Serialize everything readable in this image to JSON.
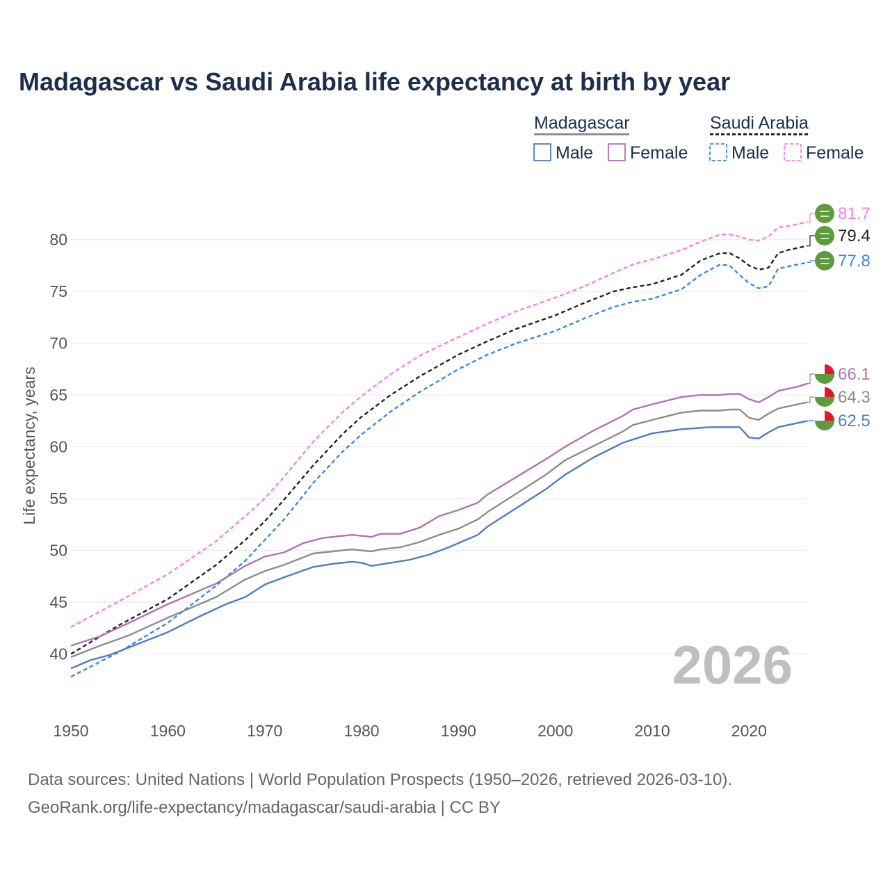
{
  "chart_data": {
    "type": "line",
    "title": "Madagascar vs Saudi Arabia life expectancy at birth by year",
    "ylabel": "Life expectancy, years",
    "xlabel": "",
    "xlim": [
      1950,
      2026
    ],
    "ylim": [
      35,
      83
    ],
    "y_ticks": [
      40,
      45,
      50,
      55,
      60,
      65,
      70,
      75,
      80
    ],
    "x_ticks": [
      1950,
      1960,
      1970,
      1980,
      1990,
      2000,
      2010,
      2020
    ],
    "year_watermark": "2026",
    "legend": {
      "groups": [
        {
          "name": "Madagascar",
          "style": "solid",
          "items": [
            "Male",
            "Female"
          ]
        },
        {
          "name": "Saudi Arabia",
          "style": "dashed",
          "items": [
            "Male",
            "Female"
          ]
        }
      ]
    },
    "series": [
      {
        "name": "Saudi Arabia Female",
        "country": "Saudi Arabia",
        "sex": "Female",
        "dashed": true,
        "color": "#f47ef0",
        "end_label": "81.7",
        "points": [
          [
            1950,
            42.6
          ],
          [
            1955,
            45.1
          ],
          [
            1960,
            47.7
          ],
          [
            1965,
            50.9
          ],
          [
            1968,
            53.3
          ],
          [
            1970,
            55.0
          ],
          [
            1972,
            57.1
          ],
          [
            1975,
            60.5
          ],
          [
            1978,
            63.3
          ],
          [
            1980,
            64.9
          ],
          [
            1983,
            67.0
          ],
          [
            1986,
            68.8
          ],
          [
            1990,
            70.6
          ],
          [
            1993,
            71.9
          ],
          [
            1996,
            73.1
          ],
          [
            2000,
            74.4
          ],
          [
            2003,
            75.5
          ],
          [
            2006,
            76.8
          ],
          [
            2008,
            77.6
          ],
          [
            2010,
            78.1
          ],
          [
            2013,
            79.0
          ],
          [
            2015,
            79.8
          ],
          [
            2017,
            80.5
          ],
          [
            2018,
            80.5
          ],
          [
            2019,
            80.3
          ],
          [
            2020,
            80.0
          ],
          [
            2021,
            79.9
          ],
          [
            2022,
            80.3
          ],
          [
            2023,
            81.2
          ],
          [
            2024,
            81.3
          ],
          [
            2025,
            81.5
          ],
          [
            2026,
            81.7
          ]
        ]
      },
      {
        "name": "Saudi Arabia Both",
        "country": "Saudi Arabia",
        "sex": "Both",
        "dashed": true,
        "color": "#222222",
        "end_label": "79.4",
        "points": [
          [
            1950,
            40.0
          ],
          [
            1955,
            42.8
          ],
          [
            1960,
            45.3
          ],
          [
            1965,
            48.6
          ],
          [
            1968,
            51.0
          ],
          [
            1970,
            52.8
          ],
          [
            1972,
            54.9
          ],
          [
            1975,
            58.2
          ],
          [
            1978,
            61.2
          ],
          [
            1980,
            62.9
          ],
          [
            1983,
            65.0
          ],
          [
            1986,
            66.8
          ],
          [
            1990,
            68.9
          ],
          [
            1993,
            70.2
          ],
          [
            1996,
            71.4
          ],
          [
            2000,
            72.7
          ],
          [
            2003,
            73.9
          ],
          [
            2006,
            75.0
          ],
          [
            2008,
            75.4
          ],
          [
            2010,
            75.7
          ],
          [
            2013,
            76.6
          ],
          [
            2015,
            78.0
          ],
          [
            2017,
            78.7
          ],
          [
            2018,
            78.7
          ],
          [
            2019,
            78.2
          ],
          [
            2020,
            77.5
          ],
          [
            2021,
            77.1
          ],
          [
            2022,
            77.3
          ],
          [
            2023,
            78.7
          ],
          [
            2024,
            79.0
          ],
          [
            2025,
            79.2
          ],
          [
            2026,
            79.4
          ]
        ]
      },
      {
        "name": "Saudi Arabia Male",
        "country": "Saudi Arabia",
        "sex": "Male",
        "dashed": true,
        "color": "#3b86e8",
        "end_label": "77.8",
        "points": [
          [
            1950,
            37.8
          ],
          [
            1955,
            40.2
          ],
          [
            1960,
            43.0
          ],
          [
            1965,
            46.6
          ],
          [
            1968,
            49.0
          ],
          [
            1970,
            51.0
          ],
          [
            1972,
            53.0
          ],
          [
            1975,
            56.5
          ],
          [
            1978,
            59.5
          ],
          [
            1980,
            61.2
          ],
          [
            1983,
            63.4
          ],
          [
            1986,
            65.3
          ],
          [
            1990,
            67.5
          ],
          [
            1993,
            68.9
          ],
          [
            1996,
            70.0
          ],
          [
            2000,
            71.2
          ],
          [
            2003,
            72.4
          ],
          [
            2006,
            73.5
          ],
          [
            2008,
            74.0
          ],
          [
            2010,
            74.3
          ],
          [
            2013,
            75.2
          ],
          [
            2015,
            76.6
          ],
          [
            2017,
            77.6
          ],
          [
            2018,
            77.5
          ],
          [
            2019,
            76.6
          ],
          [
            2020,
            75.8
          ],
          [
            2021,
            75.3
          ],
          [
            2022,
            75.5
          ],
          [
            2023,
            77.2
          ],
          [
            2024,
            77.4
          ],
          [
            2025,
            77.6
          ],
          [
            2026,
            77.8
          ]
        ]
      },
      {
        "name": "Madagascar Female",
        "country": "Madagascar",
        "sex": "Female",
        "dashed": false,
        "color": "#b072b3",
        "end_label": "66.1",
        "points": [
          [
            1950,
            40.8
          ],
          [
            1953,
            41.7
          ],
          [
            1956,
            43.0
          ],
          [
            1960,
            44.8
          ],
          [
            1965,
            46.8
          ],
          [
            1968,
            48.5
          ],
          [
            1970,
            49.4
          ],
          [
            1972,
            49.8
          ],
          [
            1974,
            50.7
          ],
          [
            1976,
            51.2
          ],
          [
            1979,
            51.5
          ],
          [
            1981,
            51.3
          ],
          [
            1982,
            51.6
          ],
          [
            1984,
            51.6
          ],
          [
            1986,
            52.2
          ],
          [
            1988,
            53.3
          ],
          [
            1990,
            53.9
          ],
          [
            1992,
            54.6
          ],
          [
            1993,
            55.4
          ],
          [
            1996,
            57.1
          ],
          [
            1999,
            58.8
          ],
          [
            2001,
            60.0
          ],
          [
            2004,
            61.6
          ],
          [
            2007,
            63.0
          ],
          [
            2008,
            63.6
          ],
          [
            2010,
            64.1
          ],
          [
            2013,
            64.8
          ],
          [
            2015,
            65.0
          ],
          [
            2017,
            65.0
          ],
          [
            2018,
            65.1
          ],
          [
            2019,
            65.1
          ],
          [
            2020,
            64.6
          ],
          [
            2021,
            64.3
          ],
          [
            2022,
            64.8
          ],
          [
            2023,
            65.4
          ],
          [
            2024,
            65.6
          ],
          [
            2025,
            65.8
          ],
          [
            2026,
            66.1
          ]
        ]
      },
      {
        "name": "Madagascar Both",
        "country": "Madagascar",
        "sex": "Both",
        "dashed": false,
        "color": "#8c8c8c",
        "end_label": "64.3",
        "points": [
          [
            1950,
            39.7
          ],
          [
            1953,
            40.8
          ],
          [
            1956,
            41.8
          ],
          [
            1960,
            43.5
          ],
          [
            1965,
            45.5
          ],
          [
            1968,
            47.2
          ],
          [
            1970,
            48.0
          ],
          [
            1972,
            48.6
          ],
          [
            1975,
            49.7
          ],
          [
            1979,
            50.1
          ],
          [
            1981,
            49.9
          ],
          [
            1982,
            50.1
          ],
          [
            1984,
            50.3
          ],
          [
            1986,
            50.8
          ],
          [
            1988,
            51.5
          ],
          [
            1990,
            52.1
          ],
          [
            1992,
            53.0
          ],
          [
            1993,
            53.7
          ],
          [
            1996,
            55.5
          ],
          [
            1999,
            57.3
          ],
          [
            2001,
            58.7
          ],
          [
            2004,
            60.1
          ],
          [
            2007,
            61.5
          ],
          [
            2008,
            62.1
          ],
          [
            2010,
            62.6
          ],
          [
            2013,
            63.3
          ],
          [
            2015,
            63.5
          ],
          [
            2017,
            63.5
          ],
          [
            2018,
            63.6
          ],
          [
            2019,
            63.6
          ],
          [
            2020,
            62.8
          ],
          [
            2021,
            62.6
          ],
          [
            2022,
            63.2
          ],
          [
            2023,
            63.7
          ],
          [
            2024,
            63.9
          ],
          [
            2025,
            64.1
          ],
          [
            2026,
            64.3
          ]
        ]
      },
      {
        "name": "Madagascar Male",
        "country": "Madagascar",
        "sex": "Male",
        "dashed": false,
        "color": "#4f7cc6",
        "end_label": "62.5",
        "points": [
          [
            1950,
            38.6
          ],
          [
            1952,
            39.4
          ],
          [
            1954,
            39.9
          ],
          [
            1957,
            41.0
          ],
          [
            1960,
            42.1
          ],
          [
            1963,
            43.5
          ],
          [
            1966,
            44.8
          ],
          [
            1968,
            45.5
          ],
          [
            1970,
            46.7
          ],
          [
            1972,
            47.4
          ],
          [
            1975,
            48.4
          ],
          [
            1977,
            48.7
          ],
          [
            1979,
            48.9
          ],
          [
            1980,
            48.8
          ],
          [
            1981,
            48.5
          ],
          [
            1983,
            48.8
          ],
          [
            1985,
            49.1
          ],
          [
            1987,
            49.6
          ],
          [
            1989,
            50.3
          ],
          [
            1990,
            50.7
          ],
          [
            1992,
            51.5
          ],
          [
            1993,
            52.3
          ],
          [
            1996,
            54.1
          ],
          [
            1999,
            55.9
          ],
          [
            2001,
            57.3
          ],
          [
            2004,
            59.0
          ],
          [
            2007,
            60.4
          ],
          [
            2010,
            61.3
          ],
          [
            2013,
            61.7
          ],
          [
            2016,
            61.9
          ],
          [
            2019,
            61.9
          ],
          [
            2020,
            60.9
          ],
          [
            2021,
            60.8
          ],
          [
            2022,
            61.4
          ],
          [
            2023,
            61.9
          ],
          [
            2024,
            62.1
          ],
          [
            2025,
            62.3
          ],
          [
            2026,
            62.5
          ]
        ]
      }
    ]
  },
  "source": {
    "line1": "Data sources: United Nations | World Population Prospects (1950–2026, retrieved 2026-03-10).",
    "line2": "GeoRank.org/life-expectancy/madagascar/saudi-arabia | CC BY"
  }
}
